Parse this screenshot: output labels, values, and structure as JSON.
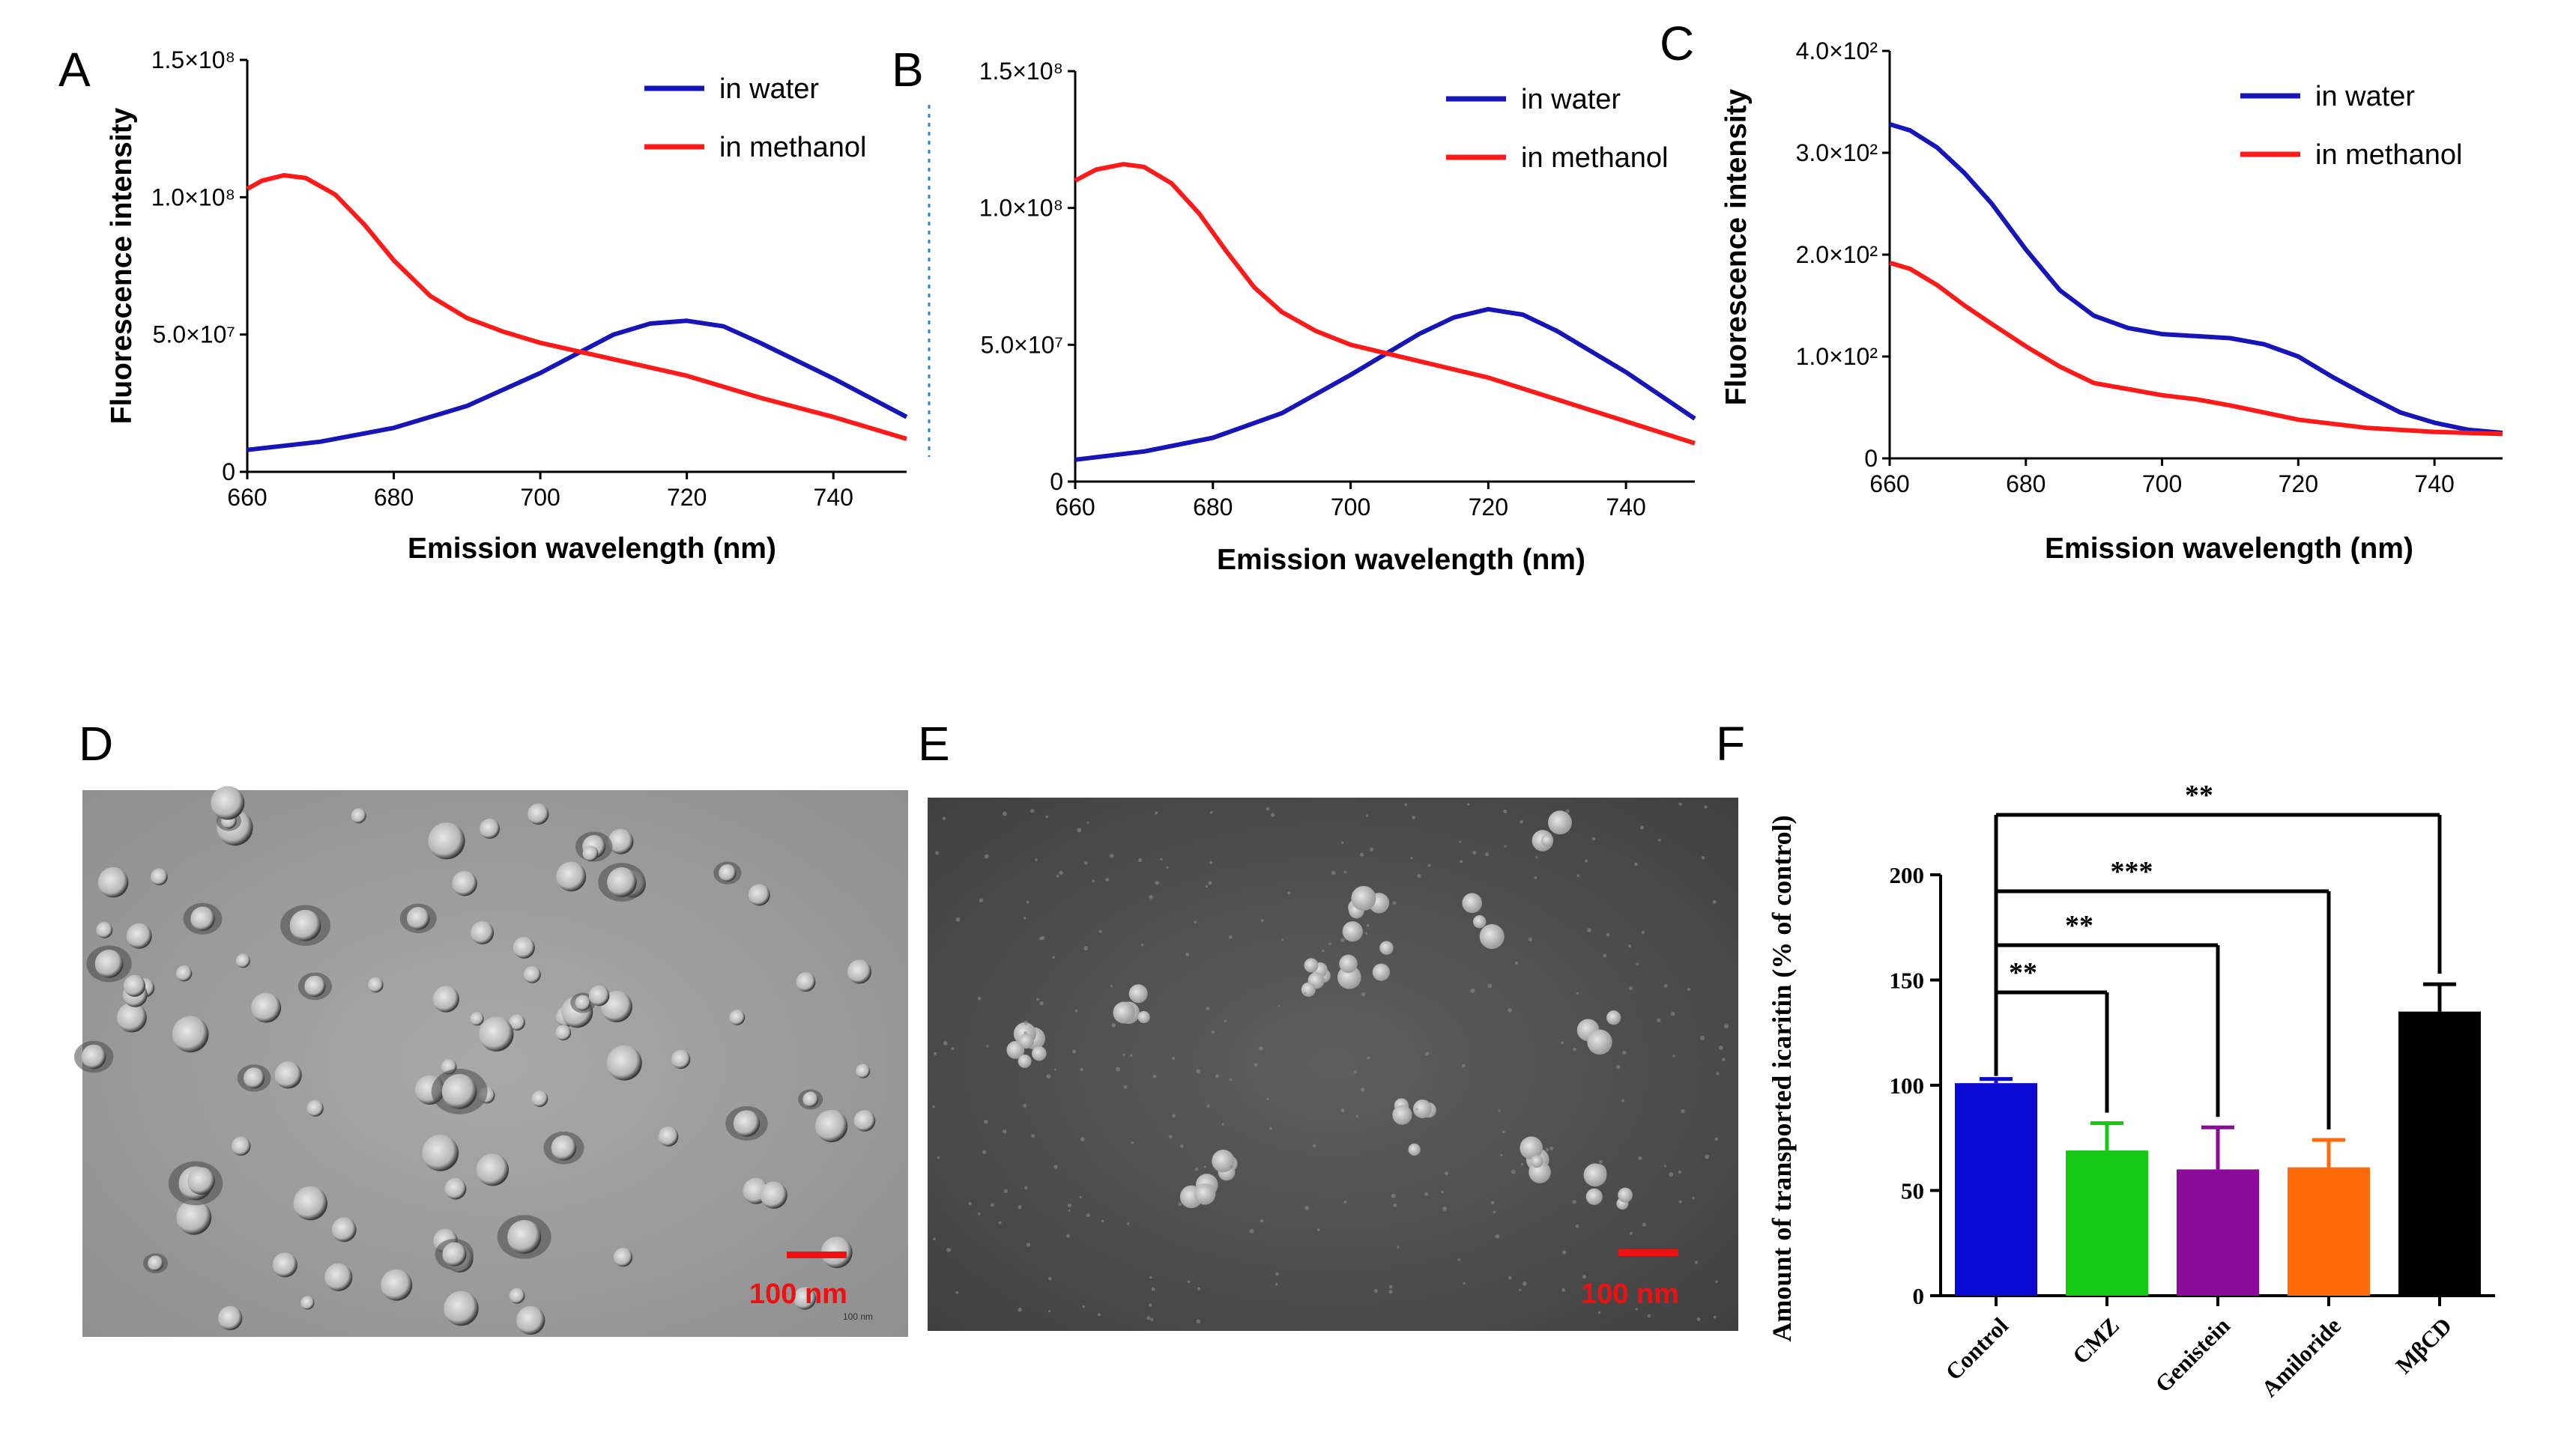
{
  "panels": {
    "A": "A",
    "B": "B",
    "C": "C",
    "D": "D",
    "E": "E",
    "F": "F"
  },
  "colors": {
    "water": "#1515b8",
    "methanol": "#ff1a1a",
    "scale_bar": "#ee1111"
  },
  "chart_data": [
    {
      "id": "A",
      "type": "line",
      "xlabel": "Emission wavelength (nm)",
      "ylabel": "Fluorescence intensity",
      "xlim": [
        660,
        750
      ],
      "ylim": [
        0,
        150000000
      ],
      "x_ticks": [
        660,
        680,
        700,
        720,
        740
      ],
      "x_tick_labels": [
        "660",
        "680",
        "700",
        "720",
        "740"
      ],
      "y_ticks": [
        0,
        50000000,
        100000000,
        150000000
      ],
      "y_tick_labels": [
        "0",
        "5.0×10⁷",
        "1.0×10⁸",
        "1.5×10⁸"
      ],
      "series": [
        {
          "name": "in water",
          "color": "#1515b8",
          "x": [
            660,
            670,
            680,
            690,
            700,
            710,
            715,
            720,
            725,
            730,
            740,
            750
          ],
          "y": [
            8000000,
            11000000,
            16000000,
            24000000,
            36000000,
            50000000,
            54000000,
            55000000,
            53000000,
            47000000,
            34000000,
            20000000
          ]
        },
        {
          "name": "in methanol",
          "color": "#ff1a1a",
          "x": [
            660,
            662,
            665,
            668,
            672,
            676,
            680,
            685,
            690,
            695,
            700,
            710,
            720,
            730,
            740,
            750
          ],
          "y": [
            103000000,
            106000000,
            108000000,
            107000000,
            101000000,
            90000000,
            77000000,
            64000000,
            56000000,
            51000000,
            47000000,
            41000000,
            35000000,
            27000000,
            20000000,
            12000000
          ]
        }
      ]
    },
    {
      "id": "B",
      "type": "line",
      "xlabel": "Emission wavelength (nm)",
      "ylabel": "",
      "xlim": [
        660,
        750
      ],
      "ylim": [
        0,
        150000000
      ],
      "x_ticks": [
        660,
        680,
        700,
        720,
        740
      ],
      "x_tick_labels": [
        "660",
        "680",
        "700",
        "720",
        "740"
      ],
      "y_ticks": [
        0,
        50000000,
        100000000,
        150000000
      ],
      "y_tick_labels": [
        "0",
        "5.0×10⁷",
        "1.0×10⁸",
        "1.5×10⁸"
      ],
      "series": [
        {
          "name": "in water",
          "color": "#1515b8",
          "x": [
            660,
            670,
            680,
            690,
            700,
            710,
            715,
            720,
            725,
            730,
            740,
            750
          ],
          "y": [
            8000000,
            11000000,
            16000000,
            25000000,
            39000000,
            54000000,
            60000000,
            63000000,
            61000000,
            55000000,
            40000000,
            23000000
          ]
        },
        {
          "name": "in methanol",
          "color": "#ff1a1a",
          "x": [
            660,
            663,
            667,
            670,
            674,
            678,
            682,
            686,
            690,
            695,
            700,
            710,
            720,
            730,
            740,
            750
          ],
          "y": [
            110000000,
            114000000,
            116000000,
            115000000,
            109000000,
            98000000,
            84000000,
            71000000,
            62000000,
            55000000,
            50000000,
            44000000,
            38000000,
            30000000,
            22000000,
            14000000
          ]
        }
      ]
    },
    {
      "id": "C",
      "type": "line",
      "xlabel": "Emission wavelength (nm)",
      "ylabel": "Fluorescence intensity",
      "xlim": [
        660,
        750
      ],
      "ylim": [
        0,
        400
      ],
      "x_ticks": [
        660,
        680,
        700,
        720,
        740
      ],
      "x_tick_labels": [
        "660",
        "680",
        "700",
        "720",
        "740"
      ],
      "y_ticks": [
        0,
        100,
        200,
        300,
        400
      ],
      "y_tick_labels": [
        "0",
        "1.0×10²",
        "2.0×10²",
        "3.0×10²",
        "4.0×10²"
      ],
      "series": [
        {
          "name": "in water",
          "color": "#1515b8",
          "x": [
            660,
            663,
            667,
            671,
            675,
            680,
            685,
            690,
            695,
            700,
            705,
            710,
            715,
            720,
            725,
            730,
            735,
            740,
            745,
            750
          ],
          "y": [
            328,
            322,
            305,
            280,
            250,
            205,
            165,
            140,
            128,
            122,
            120,
            118,
            112,
            100,
            80,
            62,
            45,
            35,
            28,
            25
          ]
        },
        {
          "name": "in methanol",
          "color": "#ff1a1a",
          "x": [
            660,
            663,
            667,
            671,
            675,
            680,
            685,
            690,
            695,
            700,
            705,
            710,
            715,
            720,
            725,
            730,
            740,
            750
          ],
          "y": [
            192,
            186,
            170,
            150,
            132,
            110,
            90,
            74,
            68,
            62,
            58,
            52,
            45,
            38,
            34,
            30,
            26,
            24
          ]
        }
      ]
    },
    {
      "id": "F",
      "type": "bar",
      "ylabel": "Amount of transported icaritin (% of control)",
      "ylim": [
        0,
        200
      ],
      "y_ticks": [
        0,
        50,
        100,
        150,
        200
      ],
      "y_tick_labels": [
        "0",
        "50",
        "100",
        "150",
        "200"
      ],
      "categories": [
        "Control",
        "CMZ",
        "Genistein",
        "Amiloride",
        "MβCD"
      ],
      "values": [
        101,
        69,
        60,
        61,
        135
      ],
      "errors": [
        2,
        13,
        20,
        13,
        13
      ],
      "colors": [
        "#0a0ad2",
        "#14c814",
        "#8c0a9a",
        "#ff6a0a",
        "#000000"
      ],
      "significance": [
        {
          "from": "Control",
          "to": "CMZ",
          "label": "**"
        },
        {
          "from": "Control",
          "to": "Genistein",
          "label": "**"
        },
        {
          "from": "Control",
          "to": "Amiloride",
          "label": "***"
        },
        {
          "from": "Control",
          "to": "MβCD",
          "label": "**"
        }
      ]
    }
  ],
  "images": {
    "D": {
      "scale_label": "100 nm",
      "inset_label": "100 nm"
    },
    "E": {
      "scale_label": "100 nm"
    }
  }
}
